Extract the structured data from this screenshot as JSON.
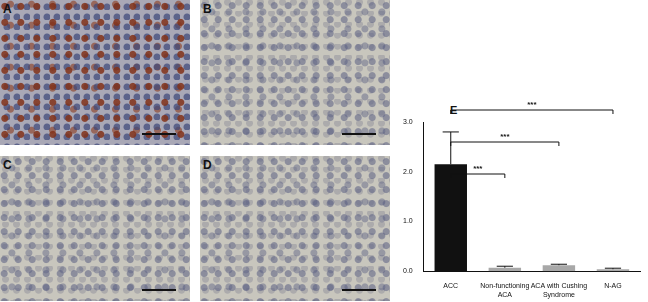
{
  "panels": [
    {
      "label": "A"
    },
    {
      "label": "B"
    },
    {
      "label": "C"
    },
    {
      "label": "D"
    }
  ],
  "chart_data": {
    "type": "bar",
    "panel_label": "E",
    "categories": [
      "ACC",
      "Non-functioning ACA",
      "ACA with Cushing Syndrome",
      "N-AG"
    ],
    "values": [
      2.15,
      0.07,
      0.12,
      0.04
    ],
    "errors": [
      0.65,
      0.03,
      0.02,
      0.02
    ],
    "colors": [
      "#111111",
      "#a8a8a8",
      "#a8a8a8",
      "#a8a8a8"
    ],
    "ylim": [
      0,
      3
    ],
    "yticks": [
      {
        "value": 0,
        "label": "0.0"
      },
      {
        "value": 1,
        "label": "1.0"
      },
      {
        "value": 2,
        "label": "2.0"
      },
      {
        "value": 3,
        "label": "3.0"
      }
    ],
    "grid": false,
    "significance": [
      {
        "from": "ACC",
        "to": "Non-functioning ACA",
        "label": "***"
      },
      {
        "from": "ACC",
        "to": "ACA with Cushing Syndrome",
        "label": "***"
      },
      {
        "from": "ACC",
        "to": "N-AG",
        "label": "***"
      }
    ]
  }
}
